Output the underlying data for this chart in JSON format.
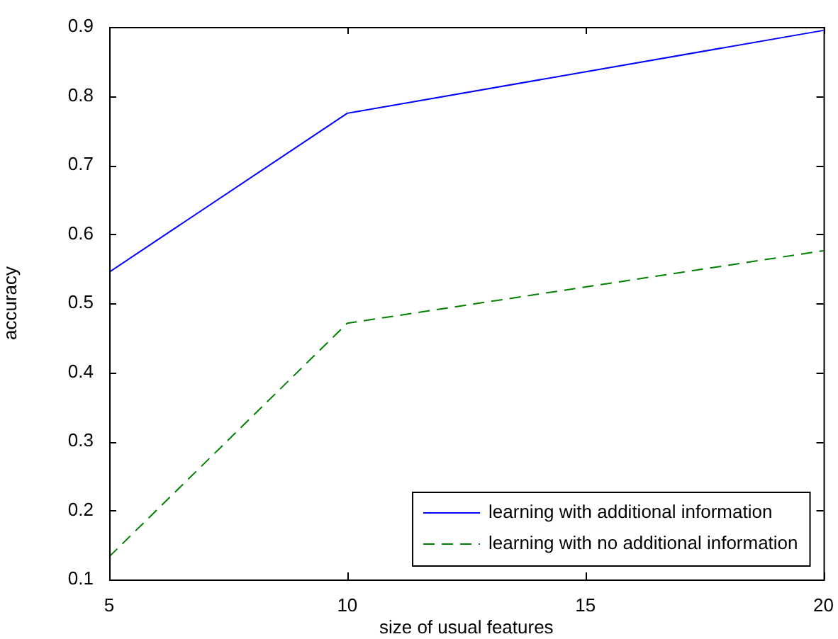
{
  "chart_data": {
    "type": "line",
    "xlabel": "size of usual features",
    "ylabel": "accuracy",
    "x": [
      5,
      10,
      20
    ],
    "xlim": [
      5,
      20
    ],
    "xticks": [
      5,
      10,
      15,
      20
    ],
    "ylim": [
      0.1,
      0.9
    ],
    "yticks": [
      0.1,
      0.2,
      0.3,
      0.4,
      0.5,
      0.6,
      0.7,
      0.8,
      0.9
    ],
    "grid": false,
    "legend": "bottom right",
    "marker": "none",
    "series": [
      {
        "name": "learning with additional information",
        "color": "#0000ff",
        "values": [
          0.545,
          0.775,
          0.895
        ],
        "line_style": "solid"
      },
      {
        "name": "learning with no additional information",
        "color": "#008000",
        "values": [
          0.133,
          0.471,
          0.576
        ],
        "line_style": "dashed"
      }
    ]
  }
}
